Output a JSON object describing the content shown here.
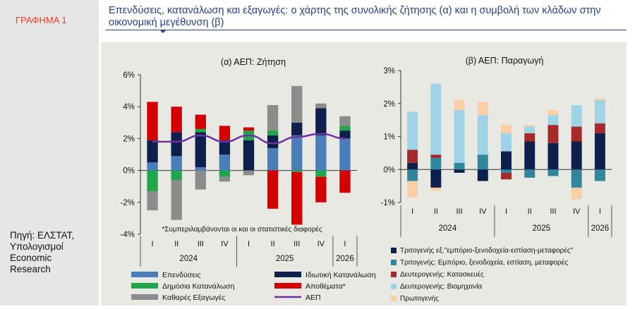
{
  "sidebar": {
    "figure_label": "ΓΡΑΦΗΜΑ 1",
    "source": "Πηγή: ΕΛΣΤΑΤ, Υπολογισμοί Economic Research"
  },
  "title": "Επενδύσεις, κατανάλωση και εξαγωγές: ο χάρτης της συνολικής ζήτησης (α) και η συμβολή των κλάδων στην οικονομική μεγέθυνση (β)",
  "colors": {
    "invest": "#4a7ebb",
    "privcons": "#0e1f4d",
    "govcons": "#1fa64a",
    "inventories": "#d40000",
    "netexports": "#8c8c8c",
    "gdp": "#7030a0",
    "trade": "#0e1f4d",
    "services": "#31859c",
    "construction": "#a52a2a",
    "industry": "#9fd3e6",
    "primary": "#fbcfa5"
  },
  "chart_data": [
    {
      "type": "bar",
      "title": "(α) ΑΕΠ: Ζήτηση",
      "categories": [
        "I",
        "II",
        "III",
        "IV",
        "I",
        "II",
        "III",
        "IV",
        "I"
      ],
      "groups": [
        "2024",
        "2025",
        "2026"
      ],
      "ylim": [
        -4,
        6
      ],
      "yticks": [
        "-4%",
        "-2%",
        "0%",
        "2%",
        "4%",
        "6%"
      ],
      "stacked": true,
      "series": [
        {
          "name": "Επενδύσεις",
          "key": "invest",
          "values": [
            0.5,
            0.9,
            0.2,
            1.0,
            0.0,
            1.4,
            2.2,
            2.2,
            2.0
          ]
        },
        {
          "name": "Ιδιωτική Κατανάλωση",
          "key": "privcons",
          "values": [
            1.4,
            1.5,
            2.2,
            0.9,
            1.9,
            0.8,
            0.8,
            1.7,
            0.5
          ]
        },
        {
          "name": "Δημόσια Κατανάλωση",
          "key": "govcons",
          "values": [
            -1.3,
            -0.6,
            0.2,
            -0.4,
            0.6,
            0.3,
            -0.1,
            -0.4,
            0.3
          ]
        },
        {
          "name": "Αποθέματα*",
          "key": "inventories",
          "values": [
            2.4,
            1.6,
            0.9,
            0.9,
            0.2,
            -2.4,
            -3.3,
            -1.6,
            -1.4
          ]
        },
        {
          "name": "Καθαρές Εξαγωγές",
          "key": "netexports",
          "values": [
            -1.2,
            -2.5,
            -1.2,
            -0.3,
            -0.3,
            1.6,
            2.3,
            0.3,
            0.6
          ]
        }
      ],
      "line": {
        "name": "ΑΕΠ",
        "key": "gdp",
        "values": [
          1.8,
          1.8,
          2.2,
          1.8,
          2.2,
          1.7,
          2.1,
          2.3,
          2.0
        ]
      },
      "note": "*Συμπεριλαμβάνονται οι και οι στατιστικές διαφορές",
      "legend": [
        "Επενδύσεις",
        "Ιδιωτική Κατανάλωση",
        "Δημόσια Κατανάλωση",
        "Αποθέματα*",
        "Καθαρές Εξαγωγές",
        "ΑΕΠ"
      ]
    },
    {
      "type": "bar",
      "title": "(β) ΑΕΠ: Παραγωγή",
      "categories": [
        "I",
        "II",
        "III",
        "IV",
        "I",
        "II",
        "III",
        "IV",
        "I"
      ],
      "groups": [
        "2024",
        "2025",
        "2026"
      ],
      "ylim": [
        -1,
        3
      ],
      "yticks": [
        "-1%",
        "0%",
        "1%",
        "2%",
        "3%"
      ],
      "stacked": true,
      "series": [
        {
          "name": "Τριτογενής εξ.\"εμπόριο-ξενοδοχεία-εστίαση-μεταφορές\"",
          "key": "trade",
          "values": [
            0.2,
            -0.55,
            -0.1,
            -0.35,
            0.55,
            0.85,
            0.8,
            0.85,
            1.1
          ]
        },
        {
          "name": "Τριτογενής: Εμπόριο, ξενοδοχεία, εστίαση, μεταφορές",
          "key": "services",
          "values": [
            -0.35,
            0.35,
            0.2,
            0.45,
            -0.1,
            -0.25,
            -0.2,
            -0.55,
            -0.35
          ]
        },
        {
          "name": "Δευτερογενής: Κατασκευές",
          "key": "construction",
          "values": [
            0.4,
            0.1,
            0.0,
            0.0,
            -0.2,
            0.25,
            0.55,
            0.45,
            0.3
          ]
        },
        {
          "name": "Δευτερογενής: Βιομηχανία",
          "key": "industry",
          "values": [
            1.15,
            2.15,
            1.6,
            1.2,
            0.55,
            0.2,
            0.3,
            0.65,
            0.7
          ]
        },
        {
          "name": "Πρωτογενής",
          "key": "primary",
          "values": [
            -0.5,
            -0.1,
            0.3,
            0.4,
            0.25,
            0.05,
            0.15,
            -0.35,
            0.05
          ]
        }
      ],
      "legend": [
        "Τριτογενής εξ.\"εμπόριο-ξενοδοχεία-εστίαση-μεταφορές\"",
        "Τριτογενής: Εμπόριο, ξενοδοχεία, εστίαση, μεταφορές",
        "Δευτερογενής: Κατασκευές",
        "Δευτερογενής: Βιομηχανία",
        "Πρωτογενής"
      ]
    }
  ]
}
